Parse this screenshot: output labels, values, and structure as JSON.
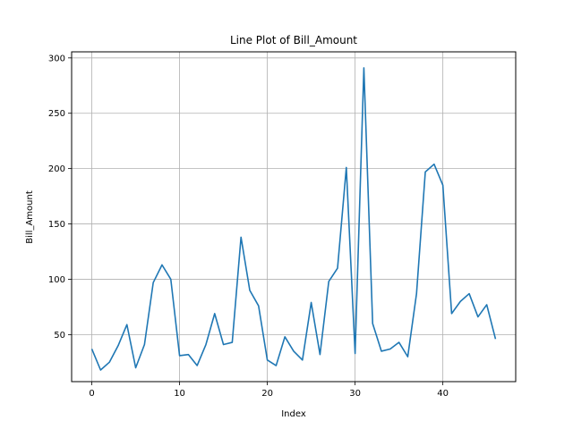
{
  "chart_data": {
    "type": "line",
    "title": "Line Plot of Bill_Amount",
    "xlabel": "Index",
    "ylabel": "Bill_Amount",
    "xlim": [
      -2.3,
      48.3
    ],
    "ylim": [
      7.5,
      305.5
    ],
    "xticks": [
      0,
      10,
      20,
      30,
      40
    ],
    "yticks": [
      50,
      100,
      150,
      200,
      250,
      300
    ],
    "grid": true,
    "color": "#1f77b4",
    "series": [
      {
        "x": [
          0,
          1,
          2,
          3,
          4,
          5,
          6,
          7,
          8,
          9,
          10,
          11,
          12,
          13,
          14,
          15,
          16,
          17,
          18,
          19,
          20,
          21,
          22,
          23,
          24,
          25,
          26,
          27,
          28,
          29,
          30,
          31,
          32,
          33,
          34,
          35,
          36,
          37,
          38,
          39,
          40,
          41,
          42,
          43,
          44,
          45,
          46
        ],
        "values": [
          37,
          18,
          25,
          40,
          59,
          20,
          41,
          97,
          113,
          100,
          31,
          32,
          22,
          41,
          69,
          41,
          43,
          138,
          90,
          76,
          27,
          22,
          48,
          35,
          27,
          79,
          32,
          98,
          110,
          201,
          33,
          291,
          60,
          35,
          37,
          43,
          30,
          87,
          197,
          204,
          185,
          69,
          80,
          87,
          66,
          77,
          46
        ]
      }
    ]
  }
}
